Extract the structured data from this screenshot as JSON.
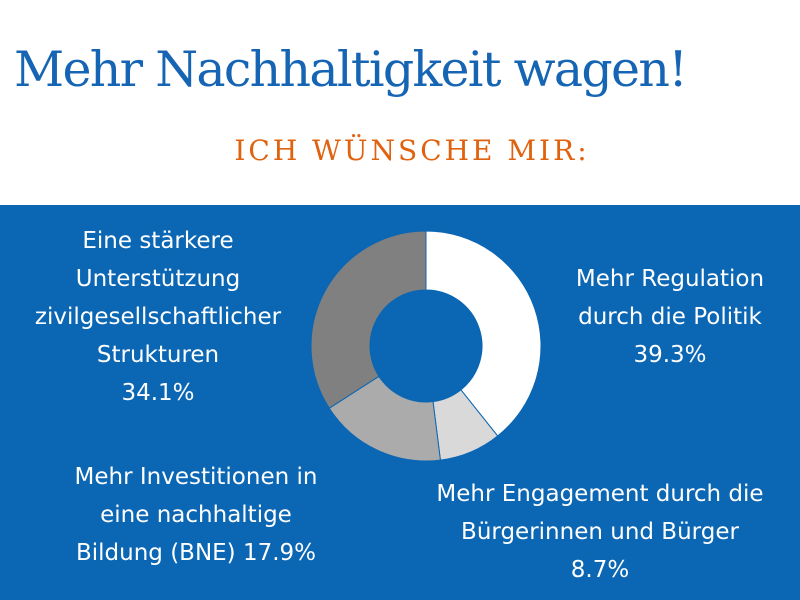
{
  "title": "Mehr Nachhaltigkeit wagen!",
  "subtitle": "ICH WÜNSCHE MIR:",
  "colors": {
    "title": "#1565b4",
    "subtitle": "#e0620f",
    "panel": "#0b66b3",
    "text": "#ffffff"
  },
  "chart_data": {
    "type": "pie",
    "variant": "donut",
    "legend": "none",
    "slices": [
      {
        "lines": [
          "Mehr Regulation",
          "durch die Politik",
          "39.3%"
        ],
        "value": 39.3,
        "color": "#ffffff"
      },
      {
        "lines": [
          "Mehr Engagement durch die",
          "Bürgerinnen und Bürger",
          "8.7%"
        ],
        "value": 8.7,
        "color": "#d9d9d9"
      },
      {
        "lines": [
          "Mehr Investitionen in",
          "eine nachhaltige",
          "Bildung (BNE) 17.9%"
        ],
        "value": 17.9,
        "color": "#ababab"
      },
      {
        "lines": [
          "Eine stärkere",
          "Unterstützung",
          "zivilgesellschaftlicher",
          "Strukturen",
          "34.1%"
        ],
        "value": 34.1,
        "color": "#808080"
      }
    ]
  }
}
